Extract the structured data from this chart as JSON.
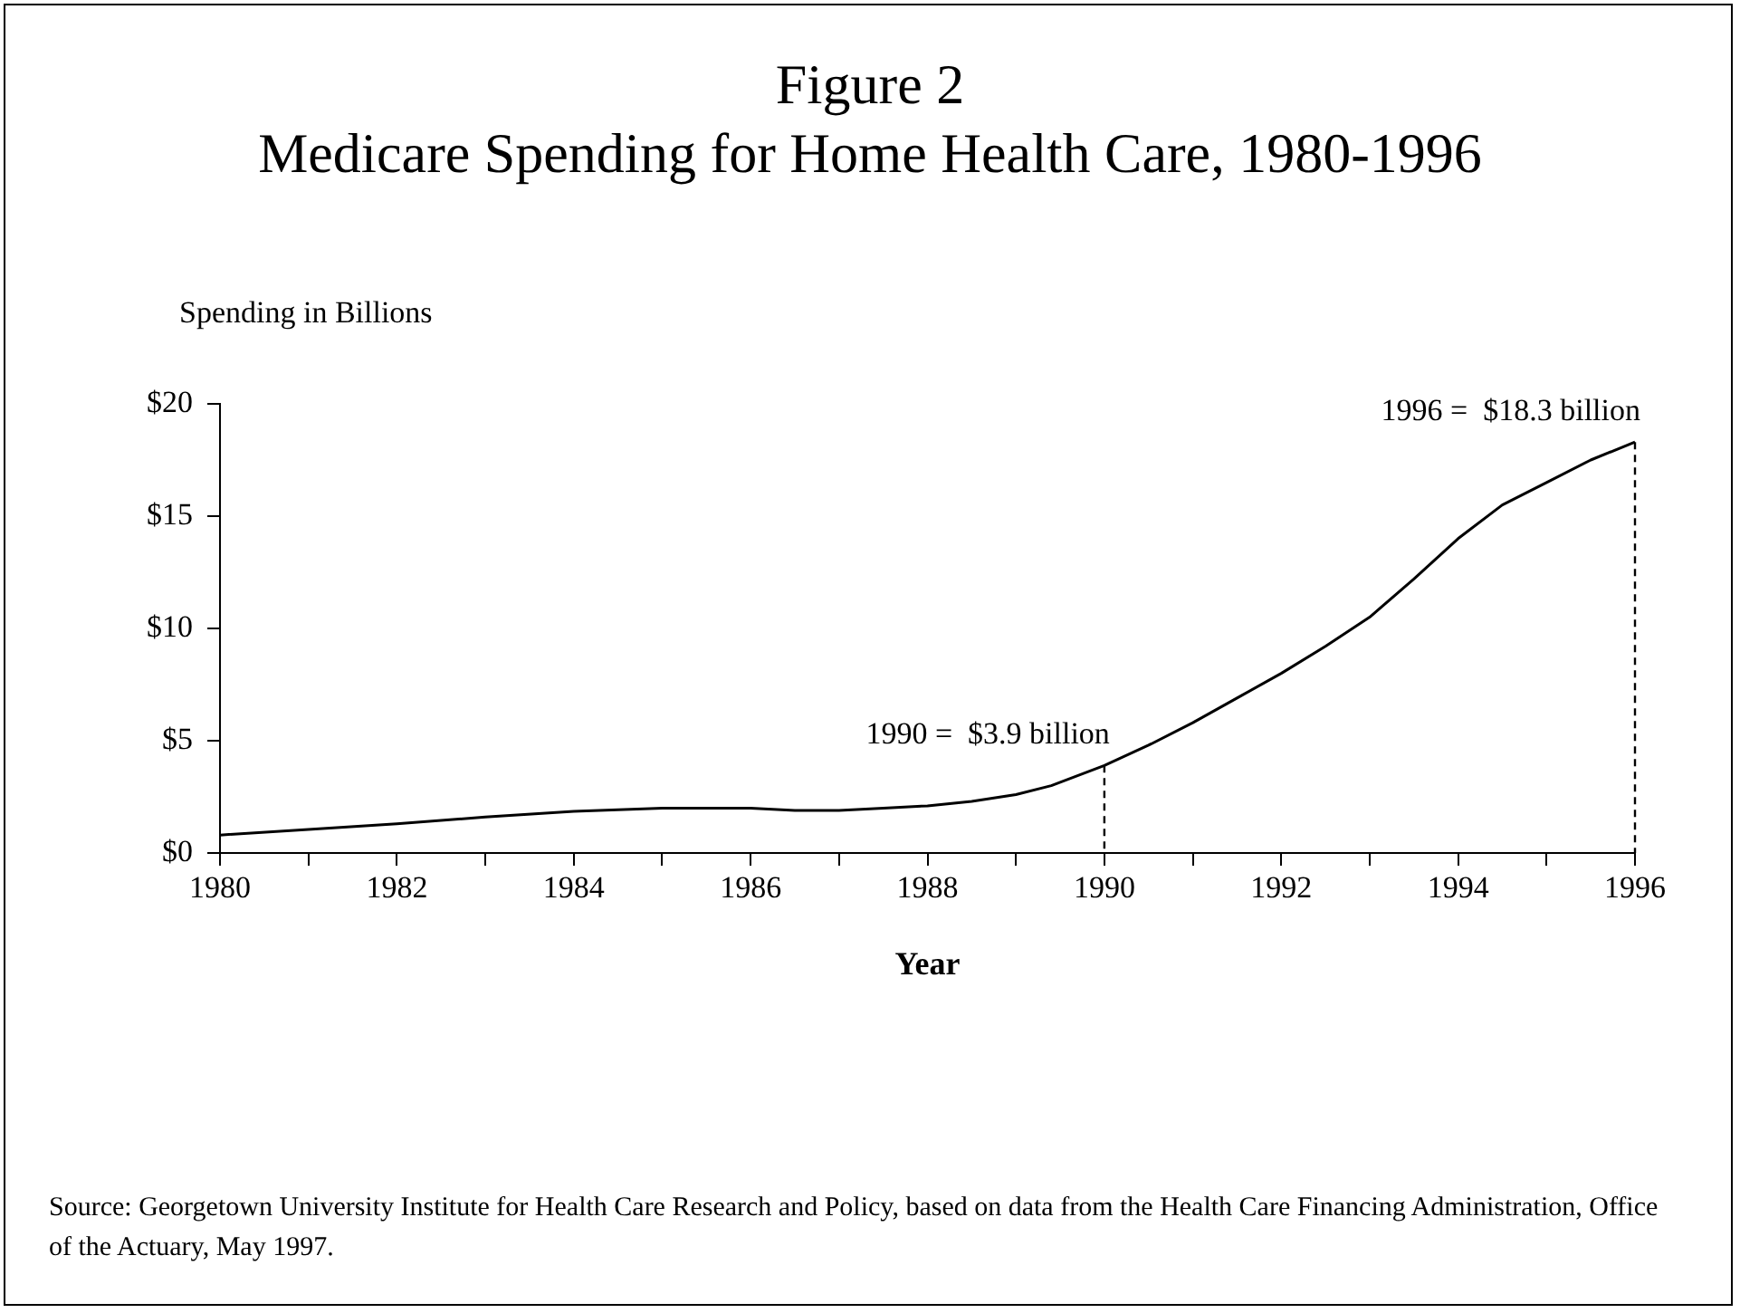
{
  "chart_data": {
    "type": "line",
    "title": "Figure 2",
    "subtitle": "Medicare Spending for Home Health Care, 1980-1996",
    "ylabel": "Spending in Billions",
    "xlabel": "Year",
    "x": [
      1980,
      1981,
      1982,
      1983,
      1984,
      1985,
      1986,
      1986.5,
      1987,
      1987.5,
      1988,
      1988.5,
      1989,
      1989.4,
      1990,
      1990.5,
      1991,
      1991.5,
      1992,
      1992.5,
      1993,
      1993.5,
      1994,
      1994.5,
      1995,
      1995.5,
      1996
    ],
    "series": [
      {
        "color": "#000000",
        "values": [
          0.8,
          1.05,
          1.3,
          1.6,
          1.85,
          2.0,
          2.0,
          1.9,
          1.9,
          2.0,
          2.1,
          2.3,
          2.6,
          3.0,
          3.9,
          4.8,
          5.8,
          6.9,
          8.0,
          9.2,
          10.5,
          12.2,
          14.0,
          15.5,
          16.5,
          17.5,
          18.3
        ]
      }
    ],
    "xlim": [
      1980,
      1996
    ],
    "ylim": [
      0,
      20
    ],
    "xticks": [
      1980,
      {
        "value": 1981,
        "label": null
      },
      1982,
      {
        "value": 1983,
        "label": null
      },
      1984,
      {
        "value": 1985,
        "label": null
      },
      1986,
      {
        "value": 1987,
        "label": null
      },
      1988,
      {
        "value": 1989,
        "label": null
      },
      1990,
      {
        "value": 1991,
        "label": null
      },
      1992,
      {
        "value": 1993,
        "label": null
      },
      1994,
      {
        "value": 1995,
        "label": null
      },
      1996
    ],
    "yticks": [
      {
        "value": 0,
        "label": "$0"
      },
      {
        "value": 5,
        "label": "$5"
      },
      {
        "value": 10,
        "label": "$10"
      },
      {
        "value": 15,
        "label": "$15"
      },
      {
        "value": 20,
        "label": "$20"
      }
    ],
    "grid": false,
    "legend": false,
    "marker": "none",
    "line_style": "solid",
    "annotations": [
      {
        "text": "1990 =  $3.9 billion",
        "x": 1990,
        "y": 3.9
      },
      {
        "text": "1996 =  $18.3 billion",
        "x": 1996,
        "y": 18.3
      },
      "Source: Georgetown University Institute for Health Care Research and Policy, based on data from the Health Care Financing Administration, Office of the Actuary, May 1997."
    ]
  }
}
